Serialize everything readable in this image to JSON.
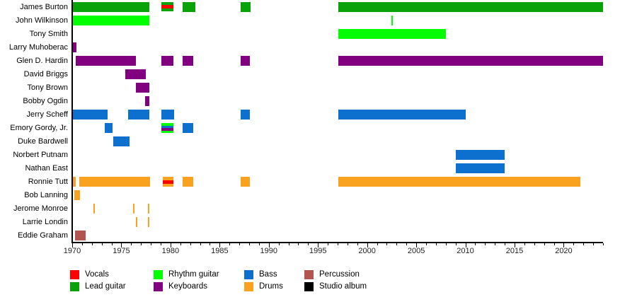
{
  "chart_data": {
    "type": "bar",
    "subtype": "band-membership-timeline",
    "title": "",
    "x_axis": {
      "min": 1970,
      "max": 2024,
      "major_ticks": [
        1970,
        1975,
        1980,
        1985,
        1990,
        1995,
        2000,
        2005,
        2010,
        2015,
        2020
      ],
      "minor_tick_interval": 1,
      "grid": false
    },
    "role_colors": {
      "vocals": "#ff0000",
      "lead_guitar": "#09a309",
      "rhythm_guitar": "#00ff00",
      "keyboards": "#800080",
      "bass": "#0d6fce",
      "drums": "#f9a21f",
      "percussion": "#b25551",
      "studio_album": "#000000"
    },
    "legend": [
      {
        "label": "Vocals",
        "role": "vocals",
        "col": 0,
        "row": 0
      },
      {
        "label": "Lead guitar",
        "role": "lead_guitar",
        "col": 0,
        "row": 1
      },
      {
        "label": "Rhythm guitar",
        "role": "rhythm_guitar",
        "col": 1,
        "row": 0
      },
      {
        "label": "Keyboards",
        "role": "keyboards",
        "col": 1,
        "row": 1
      },
      {
        "label": "Bass",
        "role": "bass",
        "col": 2,
        "row": 0
      },
      {
        "label": "Drums",
        "role": "drums",
        "col": 2,
        "row": 1
      },
      {
        "label": "Percussion",
        "role": "percussion",
        "col": 3,
        "row": 0
      },
      {
        "label": "Studio album",
        "role": "studio_album",
        "col": 3,
        "row": 1
      }
    ],
    "members": [
      {
        "name": "James Burton",
        "segments": [
          {
            "start": 1970.0,
            "end": 1977.85,
            "roles": [
              "lead_guitar"
            ]
          },
          {
            "start": 1979.1,
            "end": 1980.3,
            "roles": [
              "lead_guitar",
              "vocals",
              "lead_guitar"
            ]
          },
          {
            "start": 1981.2,
            "end": 1982.5,
            "roles": [
              "lead_guitar"
            ]
          },
          {
            "start": 1987.15,
            "end": 1988.15,
            "roles": [
              "lead_guitar"
            ]
          },
          {
            "start": 1997.1,
            "end": 2024.0,
            "roles": [
              "lead_guitar"
            ]
          }
        ]
      },
      {
        "name": "John Wilkinson",
        "segments": [
          {
            "start": 1970.0,
            "end": 1977.85,
            "roles": [
              "rhythm_guitar"
            ]
          },
          {
            "start": 2002.5,
            "end": 2002.65,
            "roles": [
              "rhythm_guitar"
            ]
          }
        ]
      },
      {
        "name": "Tony Smith",
        "segments": [
          {
            "start": 1997.1,
            "end": 2008.0,
            "roles": [
              "rhythm_guitar"
            ]
          }
        ]
      },
      {
        "name": "Larry Muhoberac",
        "segments": [
          {
            "start": 1970.0,
            "end": 1970.4,
            "roles": [
              "keyboards"
            ]
          }
        ]
      },
      {
        "name": "Glen D. Hardin",
        "segments": [
          {
            "start": 1970.35,
            "end": 1976.5,
            "roles": [
              "keyboards"
            ]
          },
          {
            "start": 1979.1,
            "end": 1980.3,
            "roles": [
              "keyboards"
            ]
          },
          {
            "start": 1981.2,
            "end": 1982.3,
            "roles": [
              "keyboards"
            ]
          },
          {
            "start": 1987.15,
            "end": 1988.1,
            "roles": [
              "keyboards"
            ]
          },
          {
            "start": 1997.1,
            "end": 2024.0,
            "roles": [
              "keyboards"
            ]
          }
        ]
      },
      {
        "name": "David Briggs",
        "segments": [
          {
            "start": 1975.4,
            "end": 1977.5,
            "roles": [
              "keyboards"
            ]
          }
        ]
      },
      {
        "name": "Tony Brown",
        "segments": [
          {
            "start": 1976.5,
            "end": 1977.85,
            "roles": [
              "keyboards"
            ]
          }
        ]
      },
      {
        "name": "Bobby Ogdin",
        "segments": [
          {
            "start": 1977.4,
            "end": 1977.85,
            "roles": [
              "keyboards"
            ]
          }
        ]
      },
      {
        "name": "Jerry Scheff",
        "segments": [
          {
            "start": 1970.0,
            "end": 1973.6,
            "roles": [
              "bass"
            ]
          },
          {
            "start": 1975.7,
            "end": 1977.85,
            "roles": [
              "bass"
            ]
          },
          {
            "start": 1979.1,
            "end": 1980.4,
            "roles": [
              "bass"
            ]
          },
          {
            "start": 1987.15,
            "end": 1988.1,
            "roles": [
              "bass"
            ]
          },
          {
            "start": 1997.1,
            "end": 2010.0,
            "roles": [
              "bass"
            ]
          }
        ]
      },
      {
        "name": "Emory Gordy, Jr.",
        "segments": [
          {
            "start": 1973.3,
            "end": 1974.1,
            "roles": [
              "bass"
            ]
          },
          {
            "start": 1979.1,
            "end": 1980.3,
            "roles": [
              "rhythm_guitar",
              "bass",
              "keyboards",
              "rhythm_guitar"
            ]
          },
          {
            "start": 1981.2,
            "end": 1982.3,
            "roles": [
              "bass"
            ]
          }
        ]
      },
      {
        "name": "Duke Bardwell",
        "segments": [
          {
            "start": 1974.2,
            "end": 1975.8,
            "roles": [
              "bass"
            ]
          }
        ]
      },
      {
        "name": "Norbert Putnam",
        "segments": [
          {
            "start": 2009.0,
            "end": 2014.0,
            "roles": [
              "bass"
            ]
          }
        ]
      },
      {
        "name": "Nathan East",
        "segments": [
          {
            "start": 2009.0,
            "end": 2014.0,
            "roles": [
              "bass"
            ]
          }
        ]
      },
      {
        "name": "Ronnie Tutt",
        "segments": [
          {
            "start": 1970.0,
            "end": 1970.35,
            "roles": [
              "drums"
            ]
          },
          {
            "start": 1970.7,
            "end": 1977.95,
            "roles": [
              "drums"
            ]
          },
          {
            "start": 1979.2,
            "end": 1980.3,
            "roles": [
              "drums",
              "vocals",
              "drums"
            ]
          },
          {
            "start": 1981.2,
            "end": 1982.3,
            "roles": [
              "drums"
            ]
          },
          {
            "start": 1987.15,
            "end": 1988.1,
            "roles": [
              "drums"
            ]
          },
          {
            "start": 1997.1,
            "end": 2021.7,
            "roles": [
              "drums"
            ]
          }
        ]
      },
      {
        "name": "Bob Lanning",
        "segments": [
          {
            "start": 1970.25,
            "end": 1970.8,
            "roles": [
              "drums"
            ]
          }
        ]
      },
      {
        "name": "Jerome Monroe",
        "segments": [
          {
            "start": 1972.15,
            "end": 1972.3,
            "roles": [
              "drums"
            ]
          },
          {
            "start": 1976.2,
            "end": 1976.35,
            "roles": [
              "drums"
            ]
          },
          {
            "start": 1977.7,
            "end": 1977.85,
            "roles": [
              "drums"
            ]
          }
        ]
      },
      {
        "name": "Larrie Londin",
        "segments": [
          {
            "start": 1976.45,
            "end": 1976.6,
            "roles": [
              "drums"
            ]
          },
          {
            "start": 1977.7,
            "end": 1977.85,
            "roles": [
              "drums"
            ]
          }
        ]
      },
      {
        "name": "Eddie Graham",
        "segments": [
          {
            "start": 1970.3,
            "end": 1971.4,
            "roles": [
              "percussion"
            ]
          }
        ]
      }
    ]
  }
}
